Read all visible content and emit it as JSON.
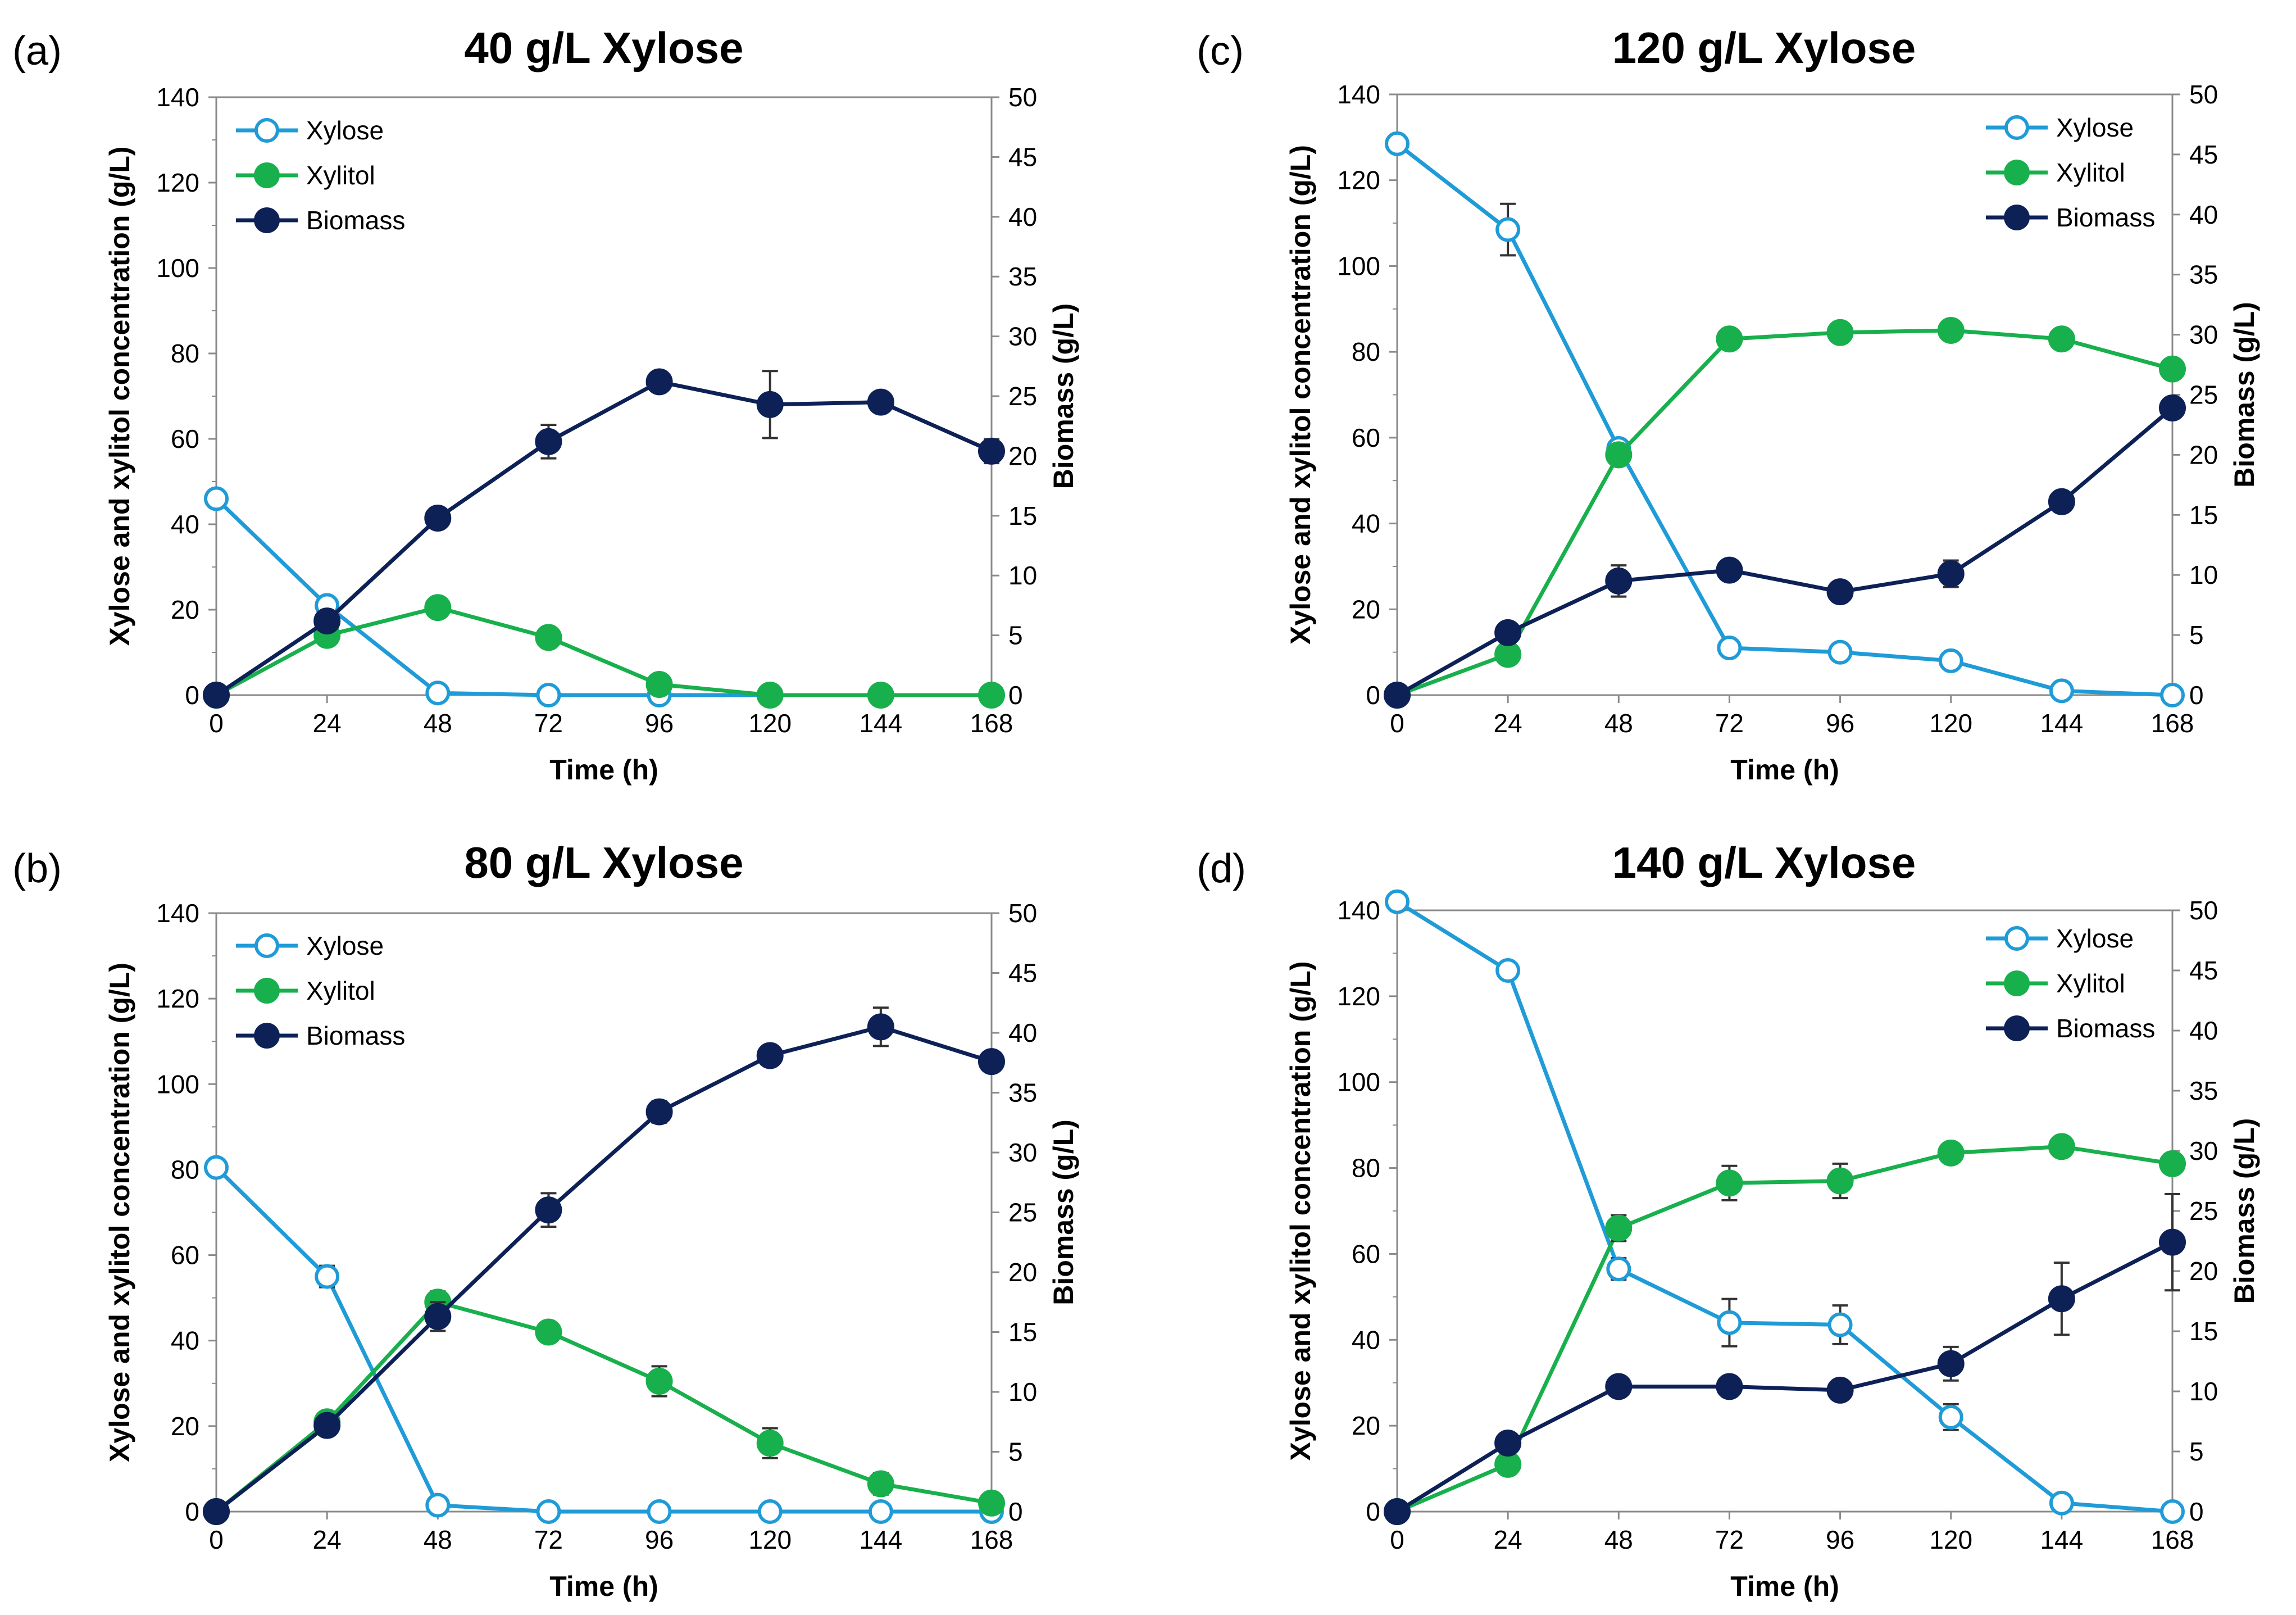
{
  "chart_data": [
    {
      "type": "line",
      "panel": "(a)",
      "title": "40 g/L Xylose",
      "xlabel": "Time (h)",
      "ylabel": "Xylose and xylitol concentration (g/L)",
      "y2label": "Biomass (g/L)",
      "x": [
        0,
        24,
        48,
        72,
        96,
        120,
        144,
        168
      ],
      "xticks": [
        "0",
        "24",
        "48",
        "72",
        "96",
        "120",
        "144",
        "168"
      ],
      "xlim": [
        0,
        168
      ],
      "ylim": [
        0,
        140
      ],
      "y2lim": [
        0,
        50
      ],
      "yticks": [
        "0",
        "20",
        "40",
        "60",
        "80",
        "100",
        "120",
        "140"
      ],
      "y2ticks": [
        "0",
        "5",
        "10",
        "15",
        "20",
        "25",
        "30",
        "35",
        "40",
        "45",
        "50"
      ],
      "legend_position": "top-left",
      "series": [
        {
          "name": "Xylose",
          "axis": "left",
          "color": "#1f9bd7",
          "marker": "open-circle",
          "values": [
            46,
            21,
            0.5,
            0,
            0,
            0,
            0,
            0
          ],
          "errors": [
            0,
            1.5,
            0,
            0,
            0,
            0,
            0,
            0
          ]
        },
        {
          "name": "Xylitol",
          "axis": "left",
          "color": "#18b04c",
          "marker": "filled-circle",
          "values": [
            0,
            14,
            20.5,
            13.5,
            2.5,
            0,
            0,
            0
          ],
          "errors": [
            0,
            0,
            0,
            0,
            0,
            0,
            0,
            0
          ]
        },
        {
          "name": "Biomass",
          "axis": "right",
          "color": "#0d2157",
          "marker": "filled-circle",
          "values": [
            0,
            6.2,
            14.8,
            21.2,
            26.2,
            24.3,
            24.5,
            20.4
          ],
          "errors": [
            0,
            0,
            0.6,
            1.4,
            0,
            2.8,
            0,
            1
          ]
        }
      ]
    },
    {
      "type": "line",
      "panel": "(b)",
      "title": "80 g/L Xylose",
      "xlabel": "Time (h)",
      "ylabel": "Xylose and xylitol concentration (g/L)",
      "y2label": "Biomass (g/L)",
      "x": [
        0,
        24,
        48,
        72,
        96,
        120,
        144,
        168
      ],
      "xticks": [
        "0",
        "24",
        "48",
        "72",
        "96",
        "120",
        "144",
        "168"
      ],
      "xlim": [
        0,
        168
      ],
      "ylim": [
        0,
        140
      ],
      "y2lim": [
        0,
        50
      ],
      "yticks": [
        "0",
        "20",
        "40",
        "60",
        "80",
        "100",
        "120",
        "140"
      ],
      "y2ticks": [
        "0",
        "5",
        "10",
        "15",
        "20",
        "25",
        "30",
        "35",
        "40",
        "45",
        "50"
      ],
      "legend_position": "top-left",
      "series": [
        {
          "name": "Xylose",
          "axis": "left",
          "color": "#1f9bd7",
          "marker": "open-circle",
          "values": [
            80.5,
            55,
            1.5,
            0,
            0,
            0,
            0,
            0
          ],
          "errors": [
            0,
            2.5,
            0,
            0,
            0,
            0,
            0,
            0
          ]
        },
        {
          "name": "Xylitol",
          "axis": "left",
          "color": "#18b04c",
          "marker": "filled-circle",
          "values": [
            0,
            21,
            49,
            42,
            30.5,
            16,
            6.5,
            2
          ],
          "errors": [
            0,
            0,
            2.5,
            0,
            3.5,
            3.5,
            2.5,
            0
          ]
        },
        {
          "name": "Biomass",
          "axis": "right",
          "color": "#0d2157",
          "marker": "filled-circle",
          "values": [
            0,
            7.2,
            16.3,
            25.2,
            33.4,
            38.1,
            40.5,
            37.6
          ],
          "errors": [
            0,
            0,
            1.2,
            1.4,
            0.9,
            0,
            1.6,
            0
          ]
        }
      ]
    },
    {
      "type": "line",
      "panel": "(c)",
      "title": "120 g/L Xylose",
      "xlabel": "Time (h)",
      "ylabel": "Xylose and xylitol concentration (g/L)",
      "y2label": "Biomass (g/L)",
      "x": [
        0,
        24,
        48,
        72,
        96,
        120,
        144,
        168
      ],
      "xticks": [
        "0",
        "24",
        "48",
        "72",
        "96",
        "120",
        "144",
        "168"
      ],
      "xlim": [
        0,
        168
      ],
      "ylim": [
        0,
        140
      ],
      "y2lim": [
        0,
        50
      ],
      "yticks": [
        "0",
        "20",
        "40",
        "60",
        "80",
        "100",
        "120",
        "140"
      ],
      "y2ticks": [
        "0",
        "5",
        "10",
        "15",
        "20",
        "25",
        "30",
        "35",
        "40",
        "45",
        "50"
      ],
      "legend_position": "top-right",
      "series": [
        {
          "name": "Xylose",
          "axis": "left",
          "color": "#1f9bd7",
          "marker": "open-circle",
          "values": [
            128.5,
            108.5,
            57.5,
            11,
            10,
            8,
            1,
            0
          ],
          "errors": [
            0,
            6,
            0,
            0,
            0,
            0,
            0,
            0
          ]
        },
        {
          "name": "Xylitol",
          "axis": "left",
          "color": "#18b04c",
          "marker": "filled-circle",
          "values": [
            0,
            9.5,
            56,
            83,
            84.5,
            85,
            83,
            76
          ],
          "errors": [
            0,
            0,
            0,
            0,
            0,
            0,
            0,
            0
          ]
        },
        {
          "name": "Biomass",
          "axis": "right",
          "color": "#0d2157",
          "marker": "filled-circle",
          "values": [
            0,
            5.2,
            9.5,
            10.4,
            8.6,
            10.1,
            16.1,
            23.9
          ],
          "errors": [
            0,
            0,
            1.3,
            0,
            0,
            1.1,
            0,
            0
          ]
        }
      ]
    },
    {
      "type": "line",
      "panel": "(d)",
      "title": "140 g/L Xylose",
      "xlabel": "Time (h)",
      "ylabel": "Xylose and xylitol concentration (g/L)",
      "y2label": "Biomass (g/L)",
      "x": [
        0,
        24,
        48,
        72,
        96,
        120,
        144,
        168
      ],
      "xticks": [
        "0",
        "24",
        "48",
        "72",
        "96",
        "120",
        "144",
        "168"
      ],
      "xlim": [
        0,
        168
      ],
      "ylim": [
        0,
        140
      ],
      "y2lim": [
        0,
        50
      ],
      "yticks": [
        "0",
        "20",
        "40",
        "60",
        "80",
        "100",
        "120",
        "140"
      ],
      "y2ticks": [
        "0",
        "5",
        "10",
        "15",
        "20",
        "25",
        "30",
        "35",
        "40",
        "45",
        "50"
      ],
      "legend_position": "top-right",
      "series": [
        {
          "name": "Xylose",
          "axis": "left",
          "color": "#1f9bd7",
          "marker": "open-circle",
          "values": [
            142,
            126,
            56.5,
            44,
            43.5,
            22,
            2,
            0
          ],
          "errors": [
            0,
            0,
            2.5,
            5.5,
            4.5,
            3,
            0,
            0
          ]
        },
        {
          "name": "Xylitol",
          "axis": "left",
          "color": "#18b04c",
          "marker": "filled-circle",
          "values": [
            0,
            11,
            66,
            76.5,
            77,
            83.5,
            85,
            81
          ],
          "errors": [
            0,
            0,
            3,
            4,
            4,
            0,
            0,
            2
          ]
        },
        {
          "name": "Biomass",
          "axis": "right",
          "color": "#0d2157",
          "marker": "filled-circle",
          "values": [
            0,
            5.7,
            10.4,
            10.4,
            10.1,
            12.3,
            17.7,
            22.4
          ],
          "errors": [
            0,
            0,
            0,
            0,
            0,
            1.4,
            3,
            4
          ]
        }
      ]
    }
  ]
}
